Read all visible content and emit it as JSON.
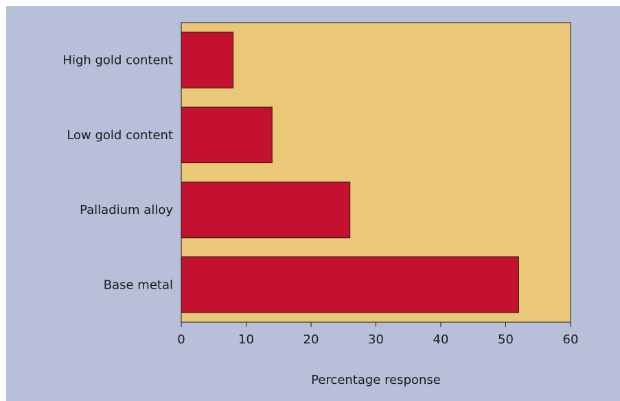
{
  "chart_data": {
    "type": "bar",
    "orientation": "horizontal",
    "categories": [
      "High gold content",
      "Low gold content",
      "Palladium alloy",
      "Base metal"
    ],
    "values": [
      8,
      14,
      26,
      52
    ],
    "xlabel": "Percentage response",
    "ylabel": "",
    "xlim": [
      0,
      60
    ],
    "xticks": [
      0,
      10,
      20,
      30,
      40,
      50,
      60
    ],
    "grid": false,
    "colors": {
      "background": "#b8bfd9",
      "plot_area": "#ebc877",
      "bar": "#c3112f",
      "axis": "#1a1a1a"
    }
  }
}
